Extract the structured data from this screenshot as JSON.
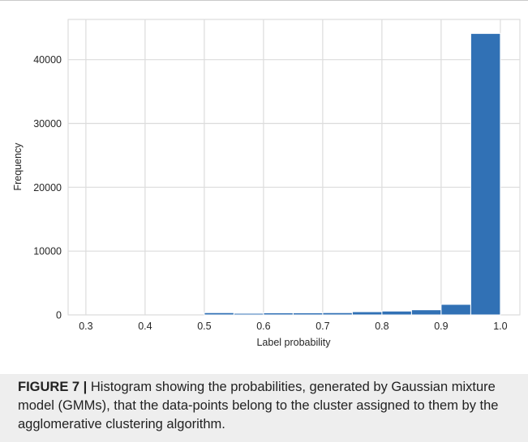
{
  "chart_data": {
    "type": "bar",
    "title": "",
    "xlabel": "Label probability",
    "ylabel": "Frequency",
    "xlim": [
      0.27,
      1.033
    ],
    "ylim": [
      0,
      46300
    ],
    "grid": true,
    "xticks": [
      "0.3",
      "0.4",
      "0.5",
      "0.6",
      "0.7",
      "0.8",
      "0.9",
      "1.0"
    ],
    "yticks": [
      "0",
      "10000",
      "20000",
      "30000",
      "40000"
    ],
    "bin_edges": [
      0.3,
      0.35,
      0.4,
      0.45,
      0.5,
      0.55,
      0.6,
      0.65,
      0.7,
      0.75,
      0.8,
      0.85,
      0.9,
      0.95,
      1.0
    ],
    "values": [
      0,
      0,
      0,
      0,
      350,
      250,
      320,
      320,
      350,
      500,
      600,
      800,
      1650,
      44100
    ],
    "bar_color": "#3171b5"
  },
  "caption": {
    "label": "FIGURE 7 |",
    "text": " Histogram showing the probabilities, generated by Gaussian mixture model (GMMs), that the data-points belong to the cluster assigned to them by the agglomerative clustering algorithm."
  }
}
